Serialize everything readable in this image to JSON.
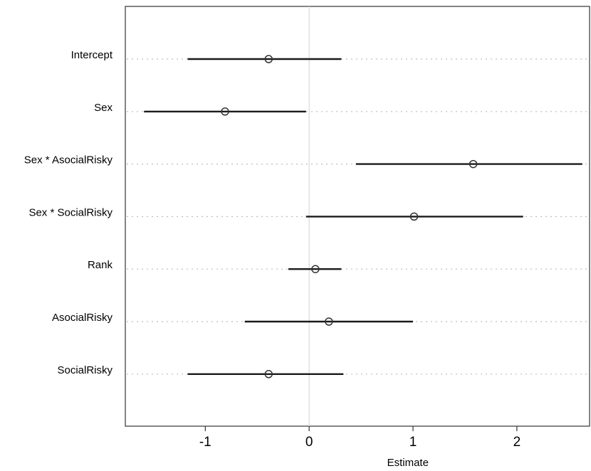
{
  "chart_data": {
    "type": "scatter",
    "subtype": "coefficient-plot",
    "title": "",
    "xlabel": "Estimate",
    "ylabel": "",
    "xlim": [
      -1.77,
      2.7
    ],
    "xticks": [
      -1,
      0,
      1,
      2
    ],
    "xtick_labels": [
      "-1",
      "0",
      "1",
      "2"
    ],
    "reference_line_x": 0,
    "grid": "dotted horizontal guide per term",
    "colors": {
      "interval": "#1a1a1a",
      "point_stroke": "#333333",
      "guide": "#bdbdbd",
      "reference": "#d9d9d9",
      "frame": "#333333"
    },
    "terms": [
      {
        "label": "Intercept",
        "estimate": -0.39,
        "lower": -1.17,
        "upper": 0.31
      },
      {
        "label": "Sex",
        "estimate": -0.81,
        "lower": -1.59,
        "upper": -0.03
      },
      {
        "label": "Sex * AsocialRisky",
        "estimate": 1.58,
        "lower": 0.45,
        "upper": 2.63
      },
      {
        "label": "Sex * SocialRisky",
        "estimate": 1.01,
        "lower": -0.03,
        "upper": 2.06
      },
      {
        "label": "Rank",
        "estimate": 0.06,
        "lower": -0.2,
        "upper": 0.31
      },
      {
        "label": "AsocialRisky",
        "estimate": 0.19,
        "lower": -0.62,
        "upper": 1.0
      },
      {
        "label": "SocialRisky",
        "estimate": -0.39,
        "lower": -1.17,
        "upper": 0.33
      }
    ]
  }
}
